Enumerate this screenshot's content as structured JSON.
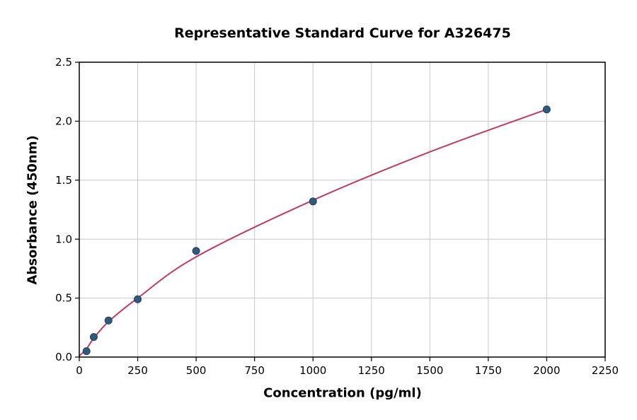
{
  "chart_data": {
    "type": "scatter",
    "title": "Representative Standard Curve for A326475",
    "xlabel": "Concentration (pg/ml)",
    "ylabel": "Absorbance (450nm)",
    "xlim": [
      0,
      2250
    ],
    "ylim": [
      0,
      2.5
    ],
    "x_ticks": [
      0,
      250,
      500,
      750,
      1000,
      1250,
      1500,
      1750,
      2000,
      2250
    ],
    "y_ticks": [
      0.0,
      0.5,
      1.0,
      1.5,
      2.0,
      2.5
    ],
    "grid": true,
    "legend_position": "none",
    "series": [
      {
        "name": "standards",
        "type": "scatter",
        "x": [
          31,
          62,
          125,
          250,
          500,
          1000,
          2000
        ],
        "y": [
          0.05,
          0.17,
          0.31,
          0.49,
          0.9,
          1.32,
          2.1
        ]
      },
      {
        "name": "fit-curve",
        "type": "line",
        "x": [
          0,
          31,
          62,
          125,
          250,
          500,
          1000,
          1500,
          2000
        ],
        "y": [
          0.01,
          0.07,
          0.16,
          0.3,
          0.5,
          0.85,
          1.33,
          1.74,
          2.1
        ]
      }
    ],
    "colors": {
      "point_fill": "#31597d",
      "point_edge": "#24415c",
      "curve": "#c23b62",
      "grid": "#c9c9c9",
      "axis_border": "#000000"
    }
  }
}
